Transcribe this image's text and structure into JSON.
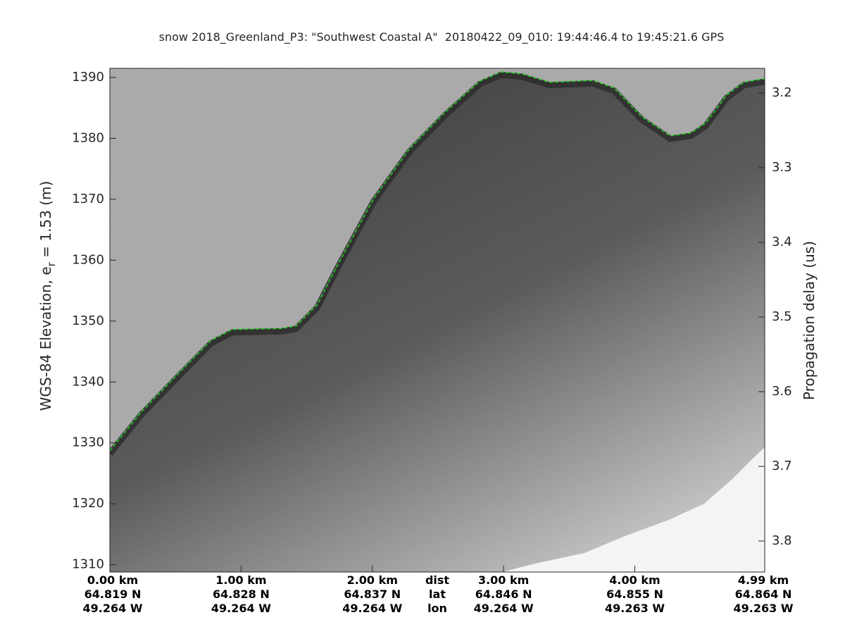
{
  "chart_data": {
    "type": "echogram",
    "title": "snow 2018_Greenland_P3: \"Southwest Coastal A\"  20180422_09_010: 19:44:46.4 to 19:45:21.6 GPS",
    "ylabel": {
      "text": "WGS-84 Elevation, e",
      "sub": "r",
      "tail": " = 1.53 (m)"
    },
    "y2label": "Propagation delay (us)",
    "xlim": [
      0,
      4.99
    ],
    "xticks": [
      {
        "value": 0,
        "label": "0.00 km"
      },
      {
        "value": 1,
        "label": "1.00 km"
      },
      {
        "value": 2,
        "label": "2.00 km"
      },
      {
        "value": 3,
        "label": "3.00 km"
      },
      {
        "value": 4,
        "label": "4.00 km"
      },
      {
        "value": 4.99,
        "label": "4.99 km"
      }
    ],
    "lat_labels": [
      "64.819 N",
      "64.828 N",
      "64.837 N",
      "64.846 N",
      "64.855 N",
      "64.864 N"
    ],
    "lon_labels": [
      "49.264 W",
      "49.264 W",
      "49.264 W",
      "49.264 W",
      "49.263 W",
      "49.263 W"
    ],
    "row_names": [
      "dist",
      "lat",
      "lon"
    ],
    "ylim": [
      1308.8,
      1391.5
    ],
    "yticks": [
      1310,
      1320,
      1330,
      1340,
      1350,
      1360,
      1370,
      1380,
      1390
    ],
    "y2lim": [
      3.8415,
      3.167
    ],
    "y2ticks": [
      3.2,
      3.3,
      3.4,
      3.5,
      3.6,
      3.7,
      3.8
    ],
    "surface": {
      "color": "#22cc22",
      "x": [
        0,
        0.24,
        0.5,
        0.77,
        0.93,
        1.31,
        1.42,
        1.58,
        1.74,
        2.01,
        2.28,
        2.55,
        2.82,
        2.98,
        3.14,
        3.35,
        3.68,
        3.84,
        4.05,
        4.27,
        4.43,
        4.54,
        4.7,
        4.83,
        4.99
      ],
      "values": [
        1328.7,
        1335.1,
        1340.9,
        1346.8,
        1348.6,
        1348.8,
        1349.2,
        1352.7,
        1359.4,
        1370.1,
        1378.2,
        1384.2,
        1389.4,
        1390.9,
        1390.6,
        1389.2,
        1389.5,
        1388.3,
        1383.6,
        1380.4,
        1380.9,
        1382.5,
        1387.1,
        1389.2,
        1389.8
      ]
    }
  }
}
